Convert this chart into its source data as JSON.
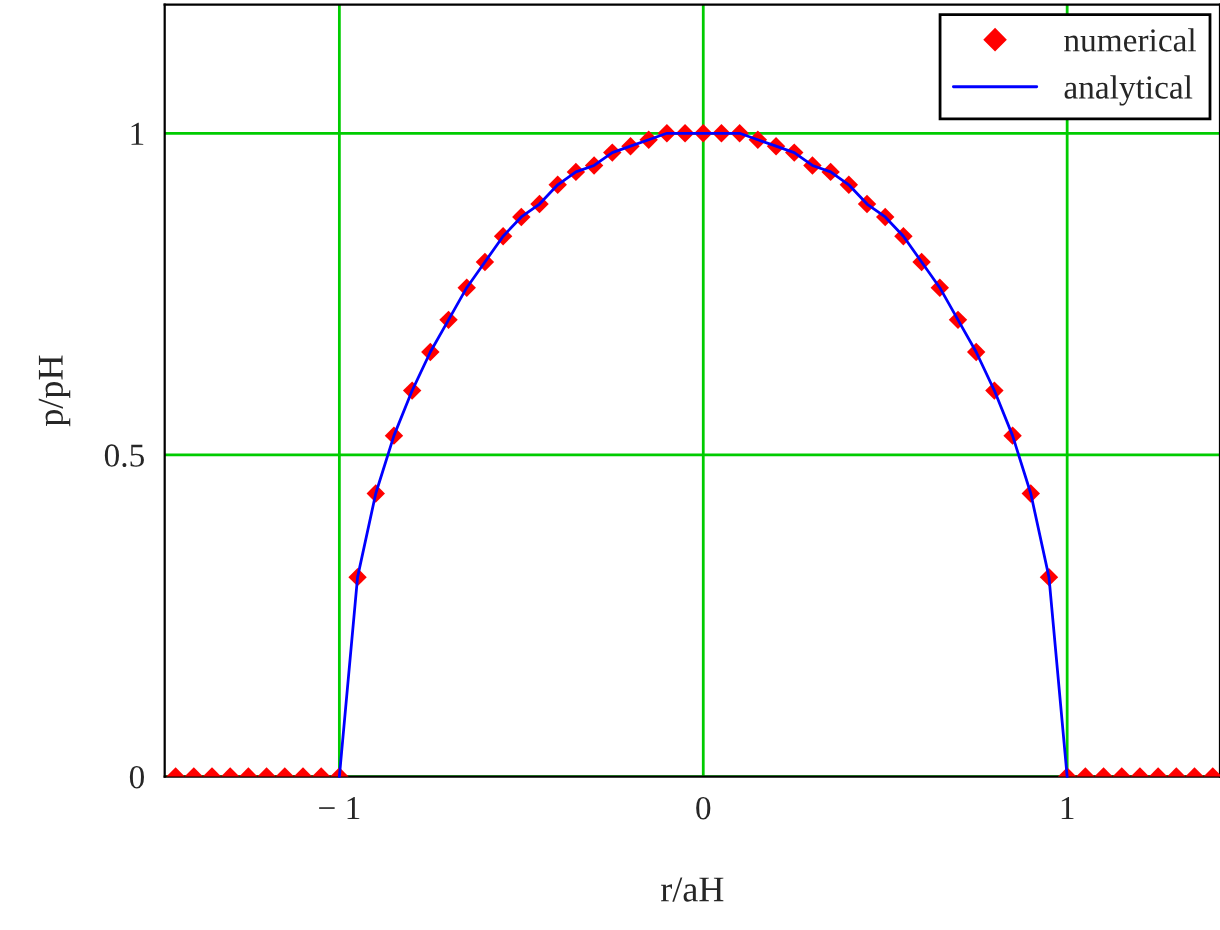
{
  "chart_data": {
    "type": "line",
    "xlabel": "r/aH",
    "ylabel": "p/pH",
    "x": [
      -1.45,
      -1.4,
      -1.35,
      -1.3,
      -1.25,
      -1.2,
      -1.15,
      -1.1,
      -1.05,
      -1.0,
      -0.95,
      -0.9,
      -0.85,
      -0.8,
      -0.75,
      -0.7,
      -0.65,
      -0.6,
      -0.55,
      -0.5,
      -0.45,
      -0.4,
      -0.35,
      -0.3,
      -0.25,
      -0.2,
      -0.15,
      -0.1,
      -0.05,
      0,
      0.05,
      0.1,
      0.15,
      0.2,
      0.25,
      0.3,
      0.35,
      0.4,
      0.45,
      0.5,
      0.55,
      0.6,
      0.65,
      0.7,
      0.75,
      0.8,
      0.85,
      0.9,
      0.95,
      1.0,
      1.05,
      1.1,
      1.15,
      1.2,
      1.25,
      1.3,
      1.35,
      1.4
    ],
    "series": [
      {
        "name": "numerical",
        "type": "scatter",
        "marker": "diamond",
        "color": "#ff0000",
        "values": [
          0,
          0,
          0,
          0,
          0,
          0,
          0,
          0,
          0,
          0,
          0.31,
          0.44,
          0.53,
          0.6,
          0.66,
          0.71,
          0.76,
          0.8,
          0.84,
          0.87,
          0.89,
          0.92,
          0.94,
          0.95,
          0.97,
          0.98,
          0.99,
          1.0,
          1.0,
          1.0,
          1.0,
          1.0,
          0.99,
          0.98,
          0.97,
          0.95,
          0.94,
          0.92,
          0.89,
          0.87,
          0.84,
          0.8,
          0.76,
          0.71,
          0.66,
          0.6,
          0.53,
          0.44,
          0.31,
          0,
          0,
          0,
          0,
          0,
          0,
          0,
          0,
          0
        ]
      },
      {
        "name": "analytical",
        "color": "#0000ff",
        "values": [
          null,
          null,
          null,
          null,
          null,
          null,
          null,
          null,
          null,
          0,
          0.31,
          0.44,
          0.53,
          0.6,
          0.66,
          0.71,
          0.76,
          0.8,
          0.84,
          0.87,
          0.89,
          0.92,
          0.94,
          0.95,
          0.97,
          0.98,
          0.99,
          1.0,
          1.0,
          1.0,
          1.0,
          1.0,
          0.99,
          0.98,
          0.97,
          0.95,
          0.94,
          0.92,
          0.89,
          0.87,
          0.84,
          0.8,
          0.76,
          0.71,
          0.66,
          0.6,
          0.53,
          0.44,
          0.31,
          0,
          null,
          null,
          null,
          null,
          null,
          null,
          null,
          null
        ]
      }
    ],
    "xlim": [
      -1.48,
      1.42
    ],
    "ylim": [
      0,
      1.2
    ],
    "xticks": [
      {
        "value": -1,
        "label": "− 1"
      },
      0,
      1
    ],
    "yticks": [
      0,
      0.5,
      1
    ],
    "grid": true,
    "legend": "top right",
    "line_style": "solid"
  }
}
